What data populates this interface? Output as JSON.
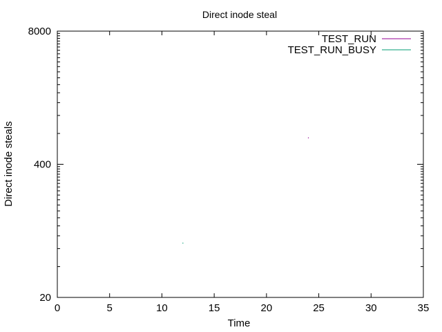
{
  "chart_data": {
    "type": "scatter",
    "title": "Direct inode steal",
    "xlabel": "Time",
    "ylabel": "Direct inode steals",
    "xlim": [
      0,
      35
    ],
    "ylim": [
      20,
      8000
    ],
    "yscale": "log",
    "grid": false,
    "legend_position": "top-right",
    "x_ticks": [
      "0",
      "5",
      "10",
      "15",
      "20",
      "25",
      "30",
      "35"
    ],
    "y_ticks": [
      "20",
      "400",
      "8000"
    ],
    "series": [
      {
        "name": "TEST_RUN",
        "color": "#940094",
        "x": [
          24
        ],
        "y": [
          726
        ]
      },
      {
        "name": "TEST_RUN_BUSY",
        "color": "#009e73",
        "x": [
          12
        ],
        "y": [
          68
        ]
      }
    ]
  }
}
